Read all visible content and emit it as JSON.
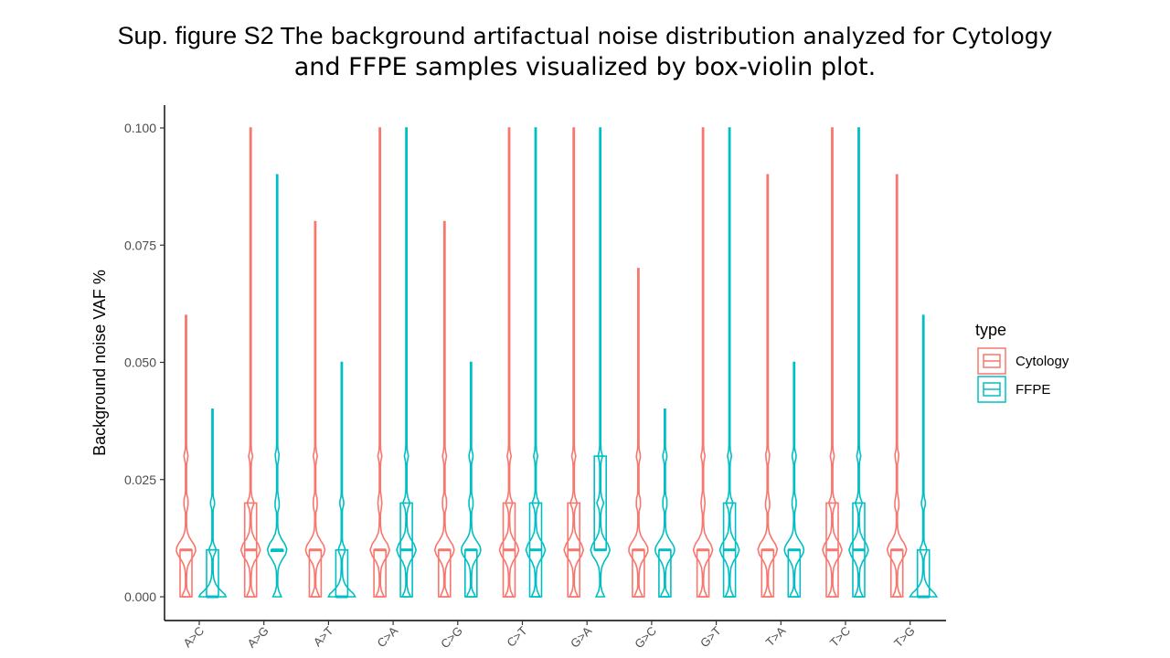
{
  "title": {
    "label": "Sup. figure S2",
    "line1_rest": "The background artifactual noise distribution analyzed for Cytology",
    "line2": "and FFPE samples visualized by box-violin plot."
  },
  "chart_data": {
    "type": "box-violin",
    "ylabel": "Background noise VAF %",
    "xlabel": "",
    "ylim": [
      0,
      0.1
    ],
    "yticks": [
      "0.000",
      "0.025",
      "0.050",
      "0.075",
      "0.100"
    ],
    "ytick_values": [
      0,
      0.025,
      0.05,
      0.075,
      0.1
    ],
    "categories": [
      "A>C",
      "A>G",
      "A>T",
      "C>A",
      "C>G",
      "C>T",
      "G>A",
      "G>C",
      "G>T",
      "T>A",
      "T>C",
      "T>G"
    ],
    "legend": {
      "title": "type",
      "placement": "right"
    },
    "series": [
      {
        "name": "Cytology",
        "color": "#F8766D",
        "max": [
          0.06,
          0.1,
          0.08,
          0.1,
          0.08,
          0.1,
          0.1,
          0.07,
          0.1,
          0.09,
          0.1,
          0.09
        ],
        "q1": [
          0,
          0,
          0,
          0,
          0,
          0,
          0,
          0,
          0,
          0,
          0,
          0
        ],
        "median": [
          0.01,
          0.01,
          0.01,
          0.01,
          0.01,
          0.01,
          0.01,
          0.01,
          0.01,
          0.01,
          0.01,
          0.01
        ],
        "q3": [
          0.01,
          0.02,
          0.01,
          0.01,
          0.01,
          0.02,
          0.02,
          0.01,
          0.01,
          0.01,
          0.02,
          0.01
        ]
      },
      {
        "name": "FFPE",
        "color": "#00BFC4",
        "max": [
          0.04,
          0.09,
          0.05,
          0.1,
          0.05,
          0.1,
          0.1,
          0.04,
          0.1,
          0.05,
          0.1,
          0.06
        ],
        "q1": [
          0,
          0.01,
          0,
          0,
          0,
          0,
          0.01,
          0,
          0,
          0,
          0,
          0
        ],
        "median": [
          0,
          0.01,
          0,
          0.01,
          0.01,
          0.01,
          0.01,
          0.01,
          0.01,
          0.01,
          0.01,
          0
        ],
        "q3": [
          0.01,
          0.01,
          0.01,
          0.02,
          0.01,
          0.02,
          0.03,
          0.01,
          0.02,
          0.01,
          0.02,
          0.01
        ]
      }
    ]
  }
}
